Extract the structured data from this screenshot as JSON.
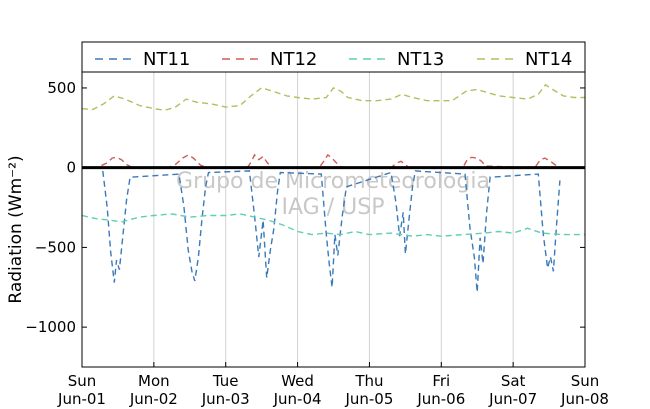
{
  "chart_data": {
    "type": "line",
    "ylabel": "Radiation (Wm⁻²)",
    "ylim": [
      -1250,
      600
    ],
    "yticks": [
      500,
      0,
      -500,
      -1000
    ],
    "ytick_labels": [
      "500",
      "0",
      "−500",
      "−1000"
    ],
    "xlim": [
      0,
      7
    ],
    "xticks": [
      0,
      1,
      2,
      3,
      4,
      5,
      6,
      7
    ],
    "xtick_labels_day": [
      "Sun",
      "Mon",
      "Tue",
      "Wed",
      "Thu",
      "Fri",
      "Sat",
      "Sun"
    ],
    "xtick_labels_date": [
      "Jun-01",
      "Jun-02",
      "Jun-03",
      "Jun-04",
      "Jun-05",
      "Jun-06",
      "Jun-07",
      "Jun-08"
    ],
    "grid": "vertical",
    "legend_position": "top",
    "watermark": [
      "Grupo de Micrometeorologia",
      "IAG / USP"
    ],
    "series": [
      {
        "name": "NT11",
        "color": "#3a7ab8",
        "points": [
          [
            0.29,
            -20
          ],
          [
            0.35,
            -250
          ],
          [
            0.4,
            -530
          ],
          [
            0.45,
            -720
          ],
          [
            0.48,
            -580
          ],
          [
            0.52,
            -640
          ],
          [
            0.57,
            -420
          ],
          [
            0.62,
            -200
          ],
          [
            0.67,
            -60
          ],
          [
            1.35,
            -40
          ],
          [
            1.42,
            -250
          ],
          [
            1.48,
            -520
          ],
          [
            1.53,
            -650
          ],
          [
            1.57,
            -710
          ],
          [
            1.62,
            -560
          ],
          [
            1.67,
            -320
          ],
          [
            1.72,
            -120
          ],
          [
            1.76,
            -30
          ],
          [
            2.33,
            -20
          ],
          [
            2.4,
            -300
          ],
          [
            2.46,
            -560
          ],
          [
            2.52,
            -330
          ],
          [
            2.57,
            -690
          ],
          [
            2.62,
            -520
          ],
          [
            2.67,
            -380
          ],
          [
            2.72,
            -150
          ],
          [
            2.76,
            -30
          ],
          [
            3.33,
            -40
          ],
          [
            3.4,
            -420
          ],
          [
            3.44,
            -600
          ],
          [
            3.48,
            -750
          ],
          [
            3.52,
            -420
          ],
          [
            3.56,
            -550
          ],
          [
            3.62,
            -310
          ],
          [
            3.68,
            -120
          ],
          [
            4.3,
            -30
          ],
          [
            4.37,
            -220
          ],
          [
            4.42,
            -430
          ],
          [
            4.47,
            -280
          ],
          [
            4.5,
            -540
          ],
          [
            4.55,
            -330
          ],
          [
            4.6,
            -120
          ],
          [
            4.64,
            -20
          ],
          [
            5.33,
            -40
          ],
          [
            5.4,
            -380
          ],
          [
            5.46,
            -560
          ],
          [
            5.5,
            -780
          ],
          [
            5.54,
            -440
          ],
          [
            5.58,
            -600
          ],
          [
            5.63,
            -280
          ],
          [
            5.68,
            -60
          ],
          [
            6.35,
            -40
          ],
          [
            6.42,
            -420
          ],
          [
            6.48,
            -630
          ],
          [
            6.52,
            -560
          ],
          [
            6.56,
            -650
          ],
          [
            6.6,
            -380
          ],
          [
            6.65,
            -80
          ]
        ]
      },
      {
        "name": "NT12",
        "color": "#cd5c5c",
        "points": [
          [
            0.0,
            0
          ],
          [
            0.2,
            0
          ],
          [
            0.35,
            30
          ],
          [
            0.42,
            60
          ],
          [
            0.48,
            65
          ],
          [
            0.55,
            50
          ],
          [
            0.62,
            20
          ],
          [
            0.7,
            0
          ],
          [
            1.2,
            0
          ],
          [
            1.3,
            20
          ],
          [
            1.4,
            60
          ],
          [
            1.48,
            80
          ],
          [
            1.55,
            60
          ],
          [
            1.65,
            15
          ],
          [
            1.75,
            0
          ],
          [
            2.3,
            0
          ],
          [
            2.36,
            40
          ],
          [
            2.4,
            80
          ],
          [
            2.46,
            50
          ],
          [
            2.52,
            70
          ],
          [
            2.58,
            30
          ],
          [
            2.65,
            0
          ],
          [
            3.3,
            0
          ],
          [
            3.38,
            50
          ],
          [
            3.42,
            80
          ],
          [
            3.48,
            60
          ],
          [
            3.54,
            30
          ],
          [
            3.62,
            0
          ],
          [
            4.3,
            0
          ],
          [
            4.38,
            30
          ],
          [
            4.44,
            40
          ],
          [
            4.5,
            20
          ],
          [
            4.55,
            0
          ],
          [
            5.3,
            0
          ],
          [
            5.36,
            50
          ],
          [
            5.42,
            65
          ],
          [
            5.5,
            60
          ],
          [
            5.56,
            40
          ],
          [
            5.62,
            10
          ],
          [
            6.3,
            0
          ],
          [
            6.38,
            50
          ],
          [
            6.44,
            60
          ],
          [
            6.52,
            40
          ],
          [
            6.58,
            20
          ],
          [
            6.65,
            0
          ],
          [
            7.0,
            0
          ]
        ]
      },
      {
        "name": "NT13",
        "color": "#5fcfb0",
        "points": [
          [
            0.0,
            -300
          ],
          [
            0.2,
            -320
          ],
          [
            0.4,
            -330
          ],
          [
            0.55,
            -340
          ],
          [
            0.8,
            -310
          ],
          [
            1.0,
            -300
          ],
          [
            1.25,
            -290
          ],
          [
            1.5,
            -310
          ],
          [
            1.75,
            -300
          ],
          [
            2.0,
            -300
          ],
          [
            2.2,
            -290
          ],
          [
            2.4,
            -310
          ],
          [
            2.6,
            -330
          ],
          [
            2.8,
            -360
          ],
          [
            3.0,
            -400
          ],
          [
            3.2,
            -420
          ],
          [
            3.4,
            -410
          ],
          [
            3.6,
            -420
          ],
          [
            3.8,
            -400
          ],
          [
            4.0,
            -420
          ],
          [
            4.3,
            -410
          ],
          [
            4.6,
            -430
          ],
          [
            4.8,
            -420
          ],
          [
            5.0,
            -430
          ],
          [
            5.3,
            -420
          ],
          [
            5.6,
            -410
          ],
          [
            5.8,
            -400
          ],
          [
            6.0,
            -410
          ],
          [
            6.2,
            -380
          ],
          [
            6.4,
            -410
          ],
          [
            6.7,
            -420
          ],
          [
            7.0,
            -420
          ]
        ]
      },
      {
        "name": "NT14",
        "color": "#b6bd5e",
        "points": [
          [
            0.0,
            370
          ],
          [
            0.15,
            365
          ],
          [
            0.3,
            400
          ],
          [
            0.45,
            450
          ],
          [
            0.6,
            430
          ],
          [
            0.8,
            390
          ],
          [
            1.0,
            370
          ],
          [
            1.15,
            360
          ],
          [
            1.3,
            380
          ],
          [
            1.45,
            430
          ],
          [
            1.6,
            410
          ],
          [
            1.8,
            400
          ],
          [
            2.0,
            380
          ],
          [
            2.2,
            390
          ],
          [
            2.35,
            450
          ],
          [
            2.5,
            500
          ],
          [
            2.65,
            480
          ],
          [
            2.85,
            450
          ],
          [
            3.0,
            440
          ],
          [
            3.2,
            430
          ],
          [
            3.4,
            440
          ],
          [
            3.5,
            500
          ],
          [
            3.6,
            480
          ],
          [
            3.7,
            440
          ],
          [
            3.9,
            420
          ],
          [
            4.1,
            420
          ],
          [
            4.3,
            430
          ],
          [
            4.45,
            460
          ],
          [
            4.6,
            440
          ],
          [
            4.8,
            420
          ],
          [
            5.0,
            420
          ],
          [
            5.15,
            420
          ],
          [
            5.35,
            480
          ],
          [
            5.5,
            490
          ],
          [
            5.65,
            470
          ],
          [
            5.8,
            450
          ],
          [
            6.0,
            440
          ],
          [
            6.2,
            430
          ],
          [
            6.35,
            460
          ],
          [
            6.45,
            520
          ],
          [
            6.55,
            490
          ],
          [
            6.7,
            450
          ],
          [
            6.85,
            440
          ],
          [
            7.0,
            440
          ]
        ]
      }
    ]
  }
}
